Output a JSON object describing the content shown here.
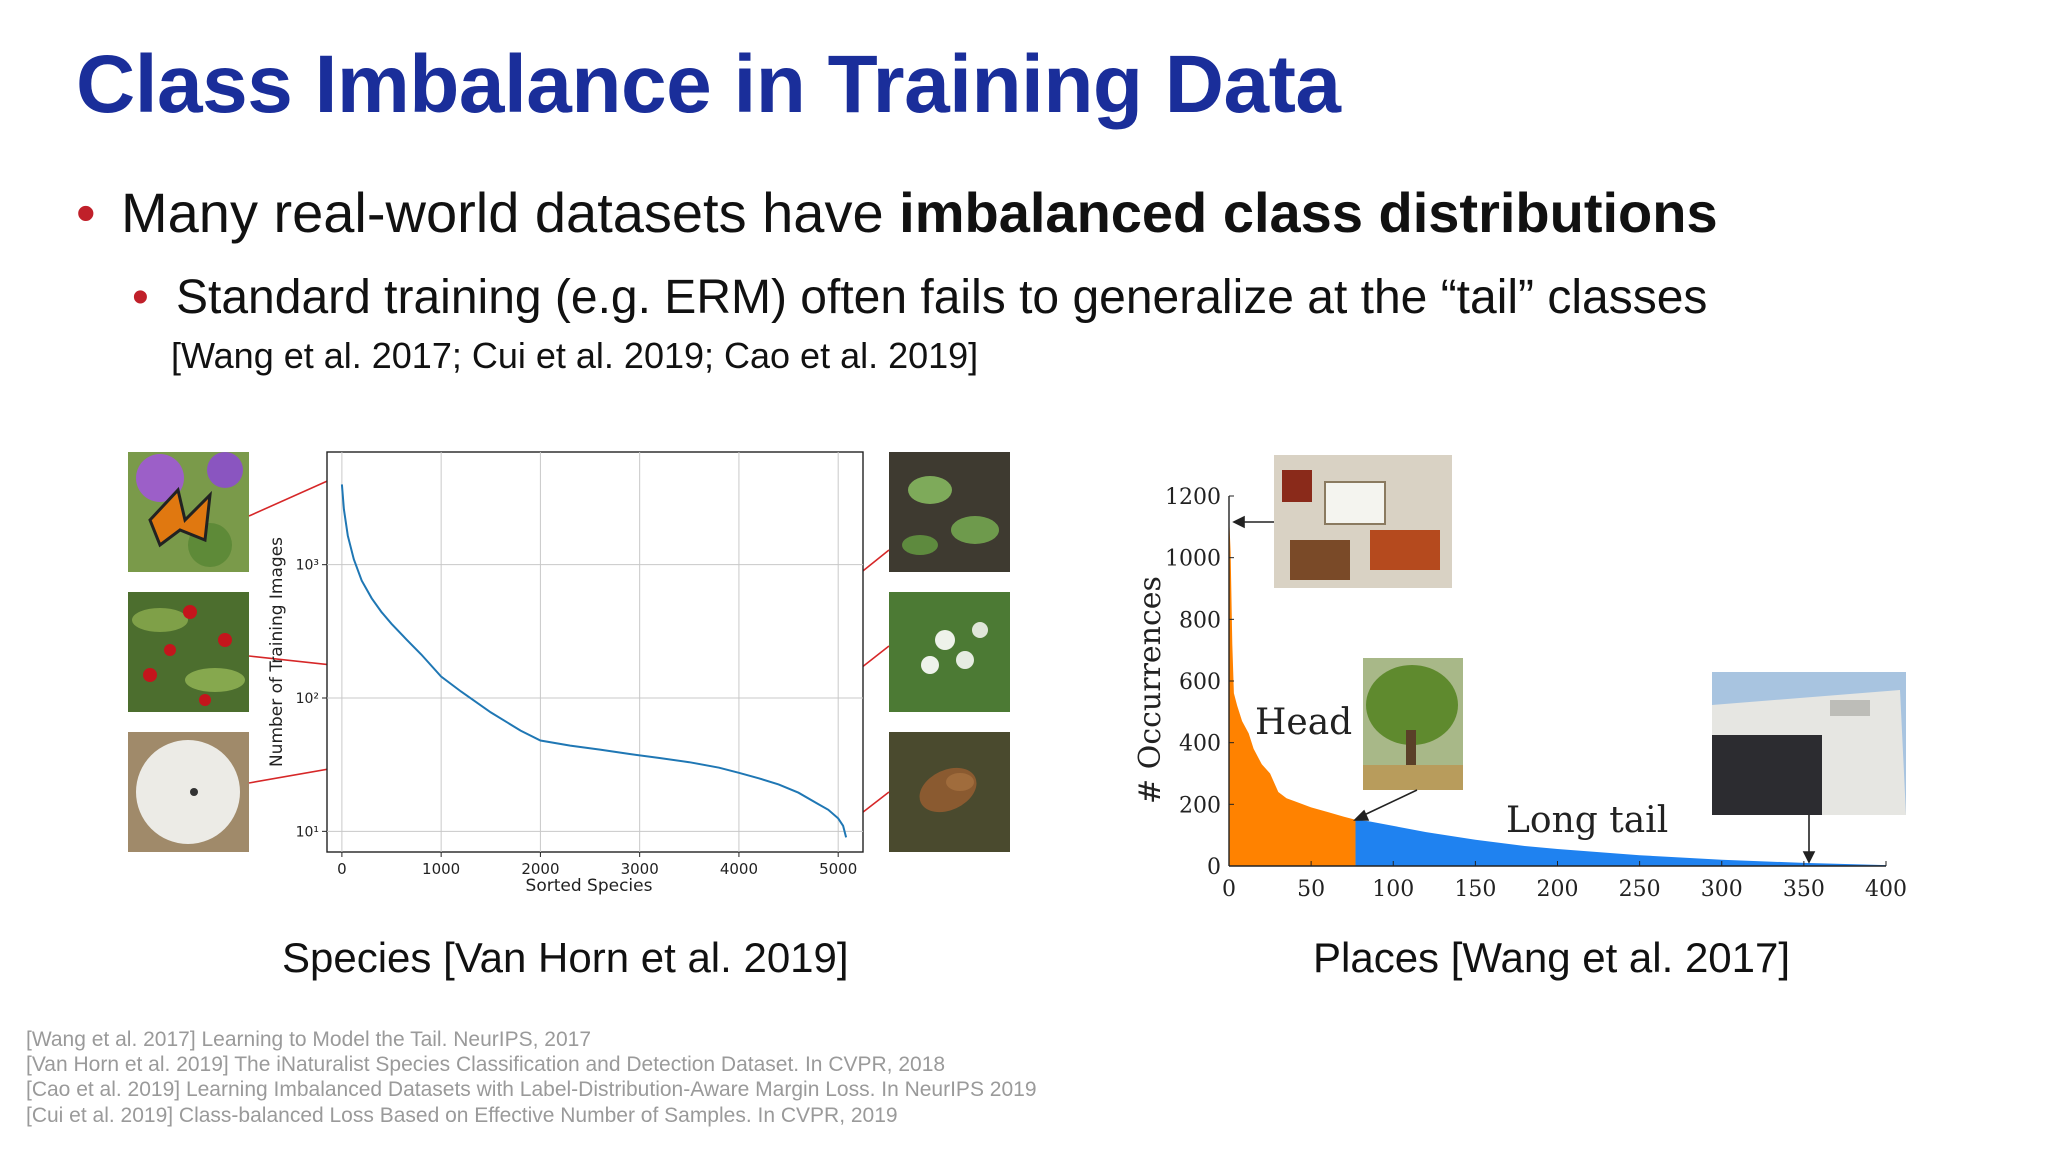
{
  "slide": {
    "title": "Class Imbalance in Training Data",
    "bullet1_plain": "Many real-world datasets have ",
    "bullet1_bold": "imbalanced class distributions",
    "bullet2": "Standard training (e.g. ERM) often fails to generalize at the “tail” classes",
    "citation": "[Wang et al. 2017; Cui et al. 2019; Cao et al. 2019]",
    "caption_left": "Species [Van Horn et al. 2019]",
    "caption_right": "Places [Wang et al. 2017]",
    "references": [
      "[Wang et al. 2017] Learning to Model the Tail. NeurIPS, 2017",
      "[Van Horn et al. 2019] The iNaturalist Species Classification and Detection Dataset. In CVPR, 2018",
      "[Cao et al. 2019] Learning Imbalanced Datasets with Label-Distribution-Aware Margin Loss. In NeurIPS 2019",
      "[Cui et al. 2019] Class-balanced Loss Based on Effective Number of Samples. In CVPR, 2019"
    ],
    "accent_color": "#1a2e9a",
    "bullet_color": "#c0202a"
  },
  "chart_data": [
    {
      "type": "line",
      "xlabel": "Sorted Species",
      "ylabel": "Number of Training Images",
      "yscale": "log",
      "xlim": [
        -150,
        5250
      ],
      "ylim": [
        7,
        7000
      ],
      "x_ticks": [
        "0",
        "1000",
        "2000",
        "3000",
        "4000",
        "5000"
      ],
      "y_ticks": [
        "10¹",
        "10²",
        "10³"
      ],
      "grid": true,
      "x": [
        0,
        20,
        60,
        120,
        200,
        300,
        400,
        500,
        650,
        800,
        1000,
        1200,
        1500,
        1800,
        2000,
        2300,
        2600,
        2900,
        3200,
        3500,
        3800,
        4000,
        4200,
        4400,
        4600,
        4800,
        4900,
        5000,
        5050,
        5080
      ],
      "y": [
        4000,
        2600,
        1650,
        1100,
        760,
        560,
        440,
        360,
        275,
        212,
        145,
        112,
        78,
        57,
        48,
        44,
        41,
        38,
        35.5,
        33,
        30,
        27.5,
        25,
        22.5,
        19.5,
        16,
        14.5,
        12.5,
        11,
        9
      ],
      "line_color": "#1f77b4",
      "thumbnails_left": [
        "butterfly-photo",
        "red-berries-photo",
        "sand-dollar-photo"
      ],
      "thumbnails_right": [
        "ground-plant-photo",
        "white-flower-photo",
        "cicada-photo"
      ]
    },
    {
      "type": "area",
      "ylabel": "# Occurrences",
      "xlim": [
        0,
        400
      ],
      "ylim": [
        0,
        1200
      ],
      "x_ticks": [
        "0",
        "50",
        "100",
        "150",
        "200",
        "250",
        "300",
        "350",
        "400"
      ],
      "y_ticks": [
        "0",
        "200",
        "400",
        "600",
        "800",
        "1000",
        "1200"
      ],
      "x": [
        0,
        1,
        2,
        3,
        5,
        8,
        12,
        15,
        20,
        25,
        30,
        35,
        40,
        50,
        60,
        70,
        77,
        85,
        100,
        120,
        150,
        180,
        200,
        250,
        300,
        350,
        400
      ],
      "y": [
        1140,
        1020,
        720,
        560,
        520,
        470,
        430,
        380,
        330,
        300,
        240,
        220,
        210,
        190,
        175,
        160,
        150,
        145,
        130,
        110,
        85,
        65,
        55,
        35,
        20,
        10,
        3
      ],
      "head_end_x": 77,
      "head_color": "#ff8200",
      "tail_color": "#1f82f0",
      "annotations": [
        "Head",
        "Long tail"
      ],
      "thumbnails": [
        "living-room-photo",
        "tree-field-photo",
        "library-building-photo"
      ]
    }
  ]
}
